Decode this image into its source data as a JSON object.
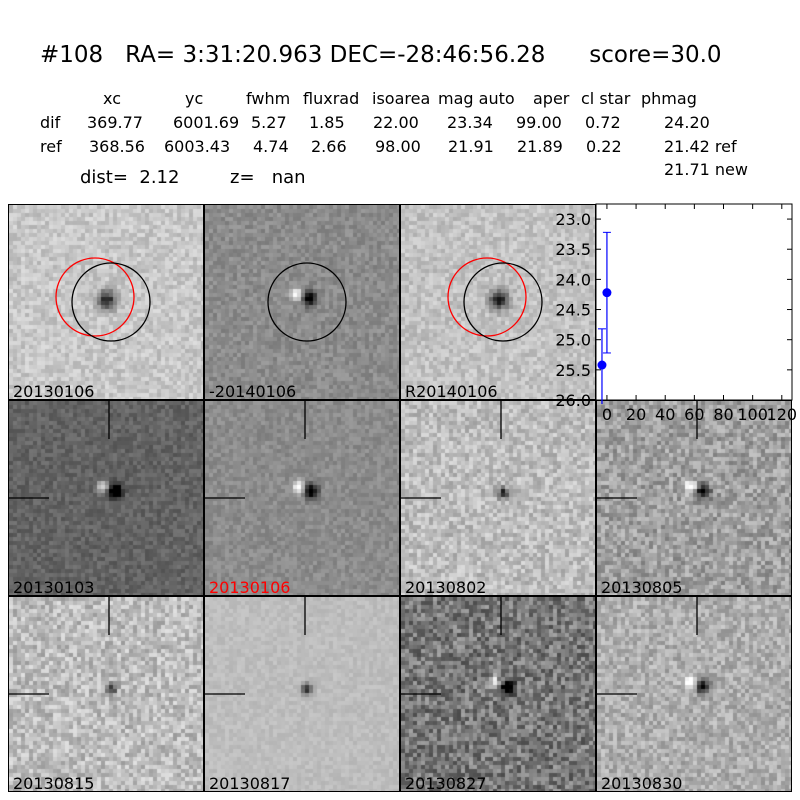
{
  "header": {
    "title": "#108   RA= 3:31:20.963 DEC=-28:46:56.28      score=30.0",
    "columns": [
      "xc",
      "yc",
      "fwhm",
      "fluxrad",
      "isoarea",
      "mag auto",
      "aper",
      "cl star",
      "phmag"
    ],
    "rows": [
      {
        "label": "dif",
        "values": [
          "369.77",
          "6001.69",
          "5.27",
          "1.85",
          "22.00",
          "23.34",
          "99.00",
          "0.72",
          "24.20"
        ]
      },
      {
        "label": "ref",
        "values": [
          "368.56",
          "6003.43",
          "4.74",
          "2.66",
          "98.00",
          "21.91",
          "21.89",
          "0.22",
          "21.42 ref"
        ]
      }
    ],
    "extra_phmag": "21.71 new",
    "dist": "dist=  2.12",
    "z": "z=   nan"
  },
  "stamps": [
    {
      "label": "20130106",
      "bg": 200,
      "noise": 22,
      "kind": "dark",
      "circles": [
        "red",
        "black"
      ],
      "label_color": "#000000"
    },
    {
      "label": "-20140106",
      "bg": 140,
      "noise": 18,
      "kind": "dipole",
      "circles": [
        "black"
      ],
      "label_color": "#000000"
    },
    {
      "label": "R20140106",
      "bg": 195,
      "noise": 22,
      "kind": "dark",
      "circles": [
        "red",
        "black"
      ],
      "label_color": "#000000"
    },
    null,
    {
      "label": "20130103",
      "bg": 100,
      "noise": 18,
      "kind": "dipole",
      "cross": true,
      "label_color": "#000000"
    },
    {
      "label": "20130106",
      "bg": 140,
      "noise": 16,
      "kind": "dipole",
      "cross": true,
      "label_color": "#ff0000"
    },
    {
      "label": "20130802",
      "bg": 190,
      "noise": 30,
      "kind": "small",
      "cross": true,
      "label_color": "#000000"
    },
    {
      "label": "20130805",
      "bg": 160,
      "noise": 35,
      "kind": "dipole",
      "cross": true,
      "label_color": "#000000"
    },
    {
      "label": "20130815",
      "bg": 190,
      "noise": 35,
      "kind": "small",
      "cross": true,
      "label_color": "#000000"
    },
    {
      "label": "20130817",
      "bg": 190,
      "noise": 10,
      "kind": "small",
      "cross": true,
      "label_color": "#000000"
    },
    {
      "label": "20130827",
      "bg": 120,
      "noise": 45,
      "kind": "dipole",
      "cross": true,
      "label_color": "#000000"
    },
    {
      "label": "20130830",
      "bg": 175,
      "noise": 30,
      "kind": "dipole",
      "cross": true,
      "label_color": "#000000"
    }
  ],
  "chart_data": {
    "type": "scatter",
    "x": [
      -3.4,
      0
    ],
    "y": [
      25.42,
      24.22
    ],
    "yerr_low": [
      0.6,
      1.0
    ],
    "yerr_high": [
      1.0,
      1.0
    ],
    "xlim": [
      -7.5,
      127
    ],
    "ylim": [
      26.0,
      22.75
    ],
    "yticks": [
      "23.0",
      "23.5",
      "24.0",
      "24.5",
      "25.0",
      "25.5",
      "26.0"
    ],
    "xticks": [
      "0",
      "20",
      "40",
      "60",
      "80",
      "100",
      "120"
    ],
    "color": "#0000ff",
    "grid": false
  }
}
